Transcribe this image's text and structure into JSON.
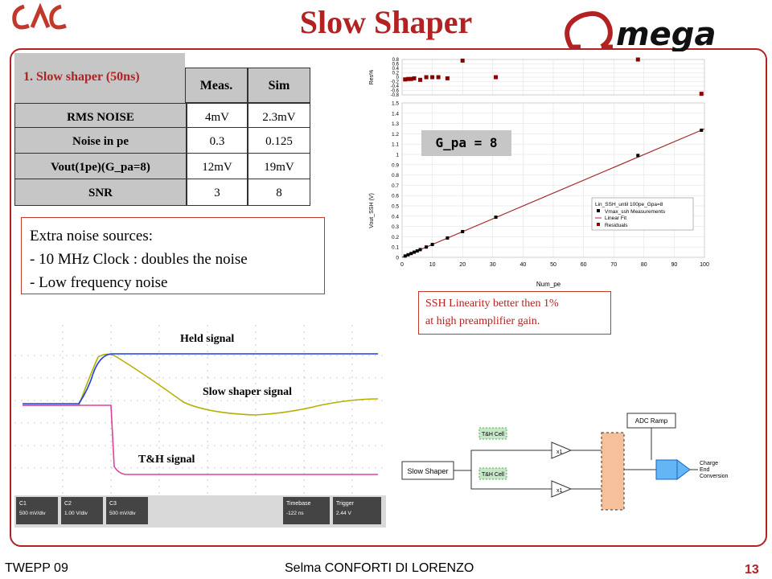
{
  "title": "Slow Shaper",
  "logo_left": "LAL",
  "logo_right": "Omega",
  "table": {
    "caption": "1. Slow shaper (50ns)",
    "headers": [
      "Meas.",
      "Sim"
    ],
    "rows": [
      {
        "label": "RMS NOISE",
        "meas": "4mV",
        "sim": "2.3mV"
      },
      {
        "label": "Noise in pe",
        "meas": "0.3",
        "sim": "0.125"
      },
      {
        "label": "Vout(1pe)(G_pa=8)",
        "meas": "12mV",
        "sim": "19mV"
      },
      {
        "label": "SNR",
        "meas": "3",
        "sim": "8"
      }
    ]
  },
  "notes": {
    "line1": "Extra noise sources:",
    "line2": "- 10 MHz Clock : doubles the noise",
    "line3": "- Low frequency  noise"
  },
  "linearity_plot": {
    "gain_label": "G_pa = 8",
    "xlabel": "Num_pe",
    "ylabel": "Vout_SSH (V)",
    "res_ylabel": "Res%",
    "x_ticks": [
      "0",
      "10",
      "20",
      "30",
      "40",
      "50",
      "60",
      "70",
      "80",
      "90",
      "100"
    ],
    "y_ticks": [
      "0",
      "0.1",
      "0.2",
      "0.3",
      "0.4",
      "0.5",
      "0.6",
      "0.7",
      "0.8",
      "0.9",
      "1",
      "1.1",
      "1.2",
      "1.3",
      "1.4",
      "1.5"
    ],
    "res_ticks": [
      "0.8",
      "0.6",
      "0.4",
      "0.2",
      "0",
      "-0.2",
      "-0.4",
      "-0.6",
      "-0.8"
    ],
    "legend_title": "Lin_SSH_until 100pe_Gpa=8",
    "legend": [
      "Vmax_ssh Measurements",
      "Linear Fit",
      "Residuals"
    ],
    "measurements": [
      [
        1,
        0.013
      ],
      [
        2,
        0.025
      ],
      [
        3,
        0.037
      ],
      [
        4,
        0.05
      ],
      [
        5,
        0.062
      ],
      [
        6,
        0.075
      ],
      [
        8,
        0.1
      ],
      [
        10,
        0.125
      ],
      [
        15,
        0.188
      ],
      [
        20,
        0.25
      ],
      [
        31,
        0.39
      ],
      [
        78,
        0.99
      ],
      [
        99,
        1.235
      ]
    ],
    "residuals": [
      [
        1,
        -0.1
      ],
      [
        2,
        -0.08
      ],
      [
        3,
        -0.08
      ],
      [
        4,
        -0.05
      ],
      [
        6,
        -0.12
      ],
      [
        8,
        0.0
      ],
      [
        10,
        0.0
      ],
      [
        12,
        0.0
      ],
      [
        15,
        -0.05
      ],
      [
        20,
        0.75
      ],
      [
        31,
        0.0
      ],
      [
        78,
        0.8
      ],
      [
        99,
        -0.75
      ]
    ]
  },
  "linearity_note": {
    "line1": "SSH Linearity better then 1%",
    "line2": "at high preamplifier gain."
  },
  "scope": {
    "held": "Held signal",
    "slow": "Slow shaper  signal",
    "th": "T&H signal",
    "ch_labels": [
      "C1",
      "C2",
      "C3",
      "Timebase",
      "Trigger"
    ],
    "ch_values": [
      "500 mV/div",
      "1.00 V/div",
      "500 mV/div",
      "-122 ns",
      "2.44 V"
    ]
  },
  "schematic": {
    "slow_shaper": "Slow Shaper",
    "th_cell1": "T&H Cell",
    "th_cell2": "T&H Cell",
    "adc_ramp": "ADC Ramp",
    "x1a": "x1",
    "x1b": "x1",
    "charge_end": "Charge\nEnd\nConversion"
  },
  "footer": {
    "left": "TWEPP 09",
    "center": "Selma CONFORTI DI LORENZO",
    "page": "13"
  }
}
